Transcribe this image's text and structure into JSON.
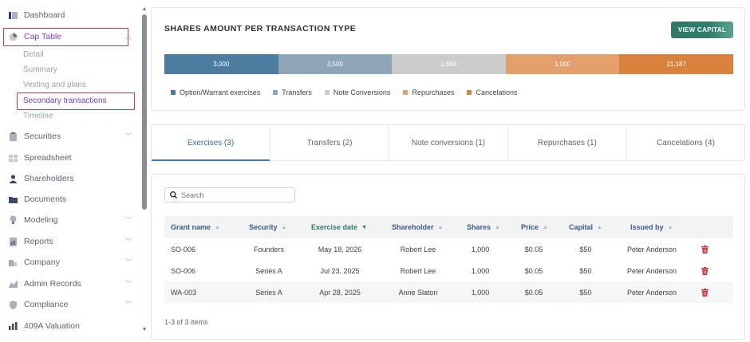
{
  "sidebar": {
    "items": [
      {
        "label": "Dashboard",
        "icon": "dashboard-icon",
        "chevron": false
      },
      {
        "label": "Cap Table",
        "icon": "pie-chart-icon",
        "chevron": true,
        "active": true
      },
      {
        "label": "Securities",
        "icon": "clipboard-icon",
        "chevron": true
      },
      {
        "label": "Spreadsheet",
        "icon": "grid-icon",
        "chevron": false
      },
      {
        "label": "Shareholders",
        "icon": "user-icon",
        "chevron": false
      },
      {
        "label": "Documents",
        "icon": "folder-icon",
        "chevron": false
      },
      {
        "label": "Modeling",
        "icon": "lightbulb-icon",
        "chevron": true
      },
      {
        "label": "Reports",
        "icon": "report-icon",
        "chevron": true
      },
      {
        "label": "Company",
        "icon": "building-icon",
        "chevron": true
      },
      {
        "label": "Admin Records",
        "icon": "records-icon",
        "chevron": true
      },
      {
        "label": "Compliance",
        "icon": "shield-icon",
        "chevron": true
      },
      {
        "label": "409A Valuation",
        "icon": "valuation-icon",
        "chevron": false
      }
    ],
    "cap_table_sub": [
      "Detail",
      "Summary",
      "Vesting and plans",
      "Secondary transactions",
      "Timeline"
    ]
  },
  "summary": {
    "title": "SHARES AMOUNT PER TRANSACTION TYPE",
    "view_capital_label": "VIEW CAPITAL",
    "segments": [
      {
        "label": "3,000",
        "value": 3000,
        "color": "#4a7d9f"
      },
      {
        "label": "3,500",
        "value": 3500,
        "color": "#8ea5b8"
      },
      {
        "label": "1,684",
        "value": 1684,
        "color": "#cccccc"
      },
      {
        "label": "1,000",
        "value": 1000,
        "color": "#e3a06b"
      },
      {
        "label": "21,187",
        "value": 21187,
        "color": "#d9823d"
      }
    ],
    "legend": [
      {
        "label": "Option/Warrant exercises",
        "color": "#4a7d9f"
      },
      {
        "label": "Transfers",
        "color": "#8ea5b8"
      },
      {
        "label": "Note Conversions",
        "color": "#cccccc"
      },
      {
        "label": "Repurchases",
        "color": "#e3a06b"
      },
      {
        "label": "Cancelations",
        "color": "#d9823d"
      }
    ]
  },
  "tabs": [
    "Exercises (3)",
    "Transfers (2)",
    "Note conversions (1)",
    "Repurchases (1)",
    "Cancelations (4)"
  ],
  "table": {
    "search_placeholder": "Search",
    "columns": [
      "Grant name",
      "Security",
      "Exercise date",
      "Shareholder",
      "Shares",
      "Price",
      "Capital",
      "Issued by"
    ],
    "rows": [
      [
        "SO-006",
        "Founders",
        "May 18, 2026",
        "Robert Lee",
        "1,000",
        "$0.05",
        "$50",
        "Peter Anderson"
      ],
      [
        "SO-006",
        "Series A",
        "Jul 23, 2025",
        "Robert Lee",
        "1,000",
        "$0.05",
        "$50",
        "Peter Anderson"
      ],
      [
        "WA-003",
        "Series A",
        "Apr 28, 2025",
        "Anne Slaton",
        "1,000",
        "$0.05",
        "$50",
        "Peter Anderson"
      ]
    ],
    "footer": "1-3 of 3 items"
  },
  "colors": {
    "accent": "#2f7a69",
    "active_nav": "#7c3aed",
    "highlight_box": "#d6364a",
    "delete": "#d0323f"
  }
}
